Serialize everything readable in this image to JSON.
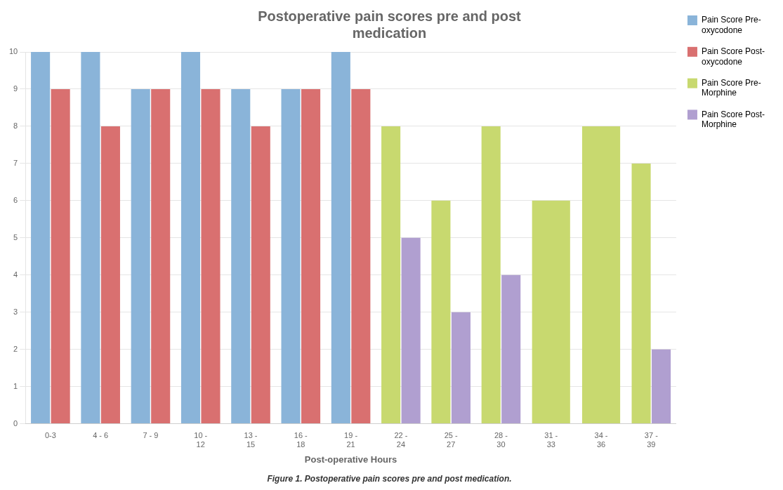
{
  "chart_data": {
    "type": "bar",
    "title": "Postoperative pain scores pre and post\nmedication",
    "xlabel": "Post-operative Hours",
    "caption": "Figure 1. Postoperative pain scores pre and post medication.",
    "categories": [
      "0-3",
      "4 - 6",
      "7 - 9",
      "10 -\n12",
      "13 -\n15",
      "16 -\n18",
      "19 -\n21",
      "22 -\n24",
      "25 -\n27",
      "28 -\n30",
      "31 -\n33",
      "34 -\n36",
      "37 -\n39"
    ],
    "series": [
      {
        "name": "Pain Score Pre-\noxycodone",
        "color": "#8AB4D9",
        "values": [
          10,
          10,
          9,
          10,
          9,
          9,
          10,
          null,
          null,
          null,
          null,
          null,
          null
        ]
      },
      {
        "name": "Pain Score Post-\noxycodone",
        "color": "#D97070",
        "values": [
          9,
          8,
          9,
          9,
          8,
          9,
          9,
          null,
          null,
          null,
          null,
          null,
          null
        ]
      },
      {
        "name": "Pain Score Pre-\nMorphine",
        "color": "#C8D96F",
        "values": [
          null,
          null,
          null,
          null,
          null,
          null,
          null,
          8,
          6,
          8,
          6,
          8,
          7
        ]
      },
      {
        "name": "Pain Score Post-\nMorphine",
        "color": "#B09FD0",
        "values": [
          null,
          null,
          null,
          null,
          null,
          null,
          null,
          5,
          3,
          4,
          null,
          null,
          2
        ]
      }
    ],
    "ylim": [
      0,
      10
    ],
    "yticks": [
      0,
      1,
      2,
      3,
      4,
      5,
      6,
      7,
      8,
      9,
      10
    ],
    "grid": true,
    "legend": "upper right"
  }
}
